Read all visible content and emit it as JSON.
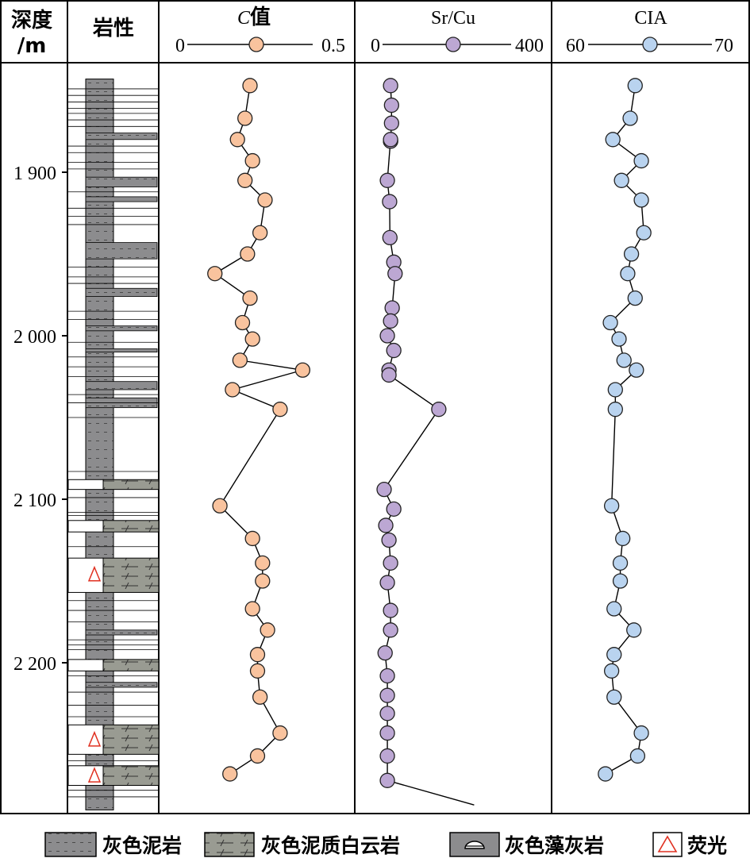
{
  "chart_data": {
    "type": "line",
    "colors": {
      "c_value": "#f9c39e",
      "sr_cu": "#bca7d3",
      "cia": "#b9d3ef",
      "mudstone": "#8c8c8e",
      "dolomite": "#999b92",
      "fluor": "#e03020"
    },
    "headers": {
      "depth": [
        "深度",
        "/m"
      ],
      "lithology": "岩性",
      "c_value": {
        "italic": "C",
        "rest": "值"
      },
      "sr_cu": "Sr/Cu",
      "cia": "CIA"
    },
    "depth_axis": {
      "ylim": [
        1843,
        2290
      ],
      "ticks": [
        1900,
        2000,
        2100,
        2200
      ],
      "tick_labels": [
        "1 900",
        "2 000",
        "2 100",
        "2 200"
      ]
    },
    "tracks": [
      {
        "key": "c_value",
        "min": 0,
        "max": 0.5,
        "min_label": "0",
        "max_label": "0.5",
        "depth": [
          1847,
          1867,
          1880,
          1893,
          1905,
          1917,
          1937,
          1950,
          1962,
          1977,
          1992,
          2002,
          2015,
          2021,
          2033,
          2045,
          2104,
          2124,
          2139,
          2150,
          2167,
          2180,
          2195,
          2205,
          2221,
          2243,
          2257,
          2268
        ],
        "values": [
          0.25,
          0.23,
          0.2,
          0.26,
          0.23,
          0.31,
          0.29,
          0.24,
          0.11,
          0.25,
          0.22,
          0.26,
          0.21,
          0.46,
          0.18,
          0.37,
          0.13,
          0.26,
          0.3,
          0.3,
          0.26,
          0.32,
          0.28,
          0.28,
          0.29,
          0.37,
          0.28,
          0.17
        ]
      },
      {
        "key": "sr_cu",
        "min": 0,
        "max": 400,
        "min_label": "0",
        "max_label": "400",
        "depth": [
          1847,
          1859,
          1870,
          1881,
          1881,
          1880,
          1905,
          1918,
          1940,
          1955,
          1962,
          1983,
          1991,
          2000,
          2009,
          2021,
          2024,
          2045,
          2094,
          2106,
          2116,
          2125,
          2139,
          2151,
          2168,
          2180,
          2194,
          2208,
          2220,
          2231,
          2243,
          2257,
          2272,
          2287
        ],
        "values": [
          25,
          28,
          28,
          25,
          25,
          25,
          15,
          22,
          23,
          35,
          39,
          30,
          25,
          15,
          35,
          20,
          20,
          175,
          5,
          35,
          10,
          20,
          25,
          15,
          25,
          25,
          8,
          15,
          15,
          15,
          15,
          15,
          15,
          285
        ]
      },
      {
        "key": "cia",
        "min": 60,
        "max": 70,
        "min_label": "60",
        "max_label": "70",
        "depth": [
          1847,
          1867,
          1880,
          1893,
          1905,
          1917,
          1937,
          1950,
          1962,
          1977,
          1992,
          2002,
          2015,
          2021,
          2033,
          2045,
          2104,
          2124,
          2139,
          2150,
          2167,
          2180,
          2195,
          2205,
          2221,
          2243,
          2257,
          2268
        ],
        "values": [
          63.8,
          63.4,
          62.0,
          64.3,
          62.7,
          64.3,
          64.5,
          63.5,
          63.2,
          63.8,
          61.8,
          62.5,
          62.9,
          63.9,
          62.2,
          62.2,
          61.9,
          62.8,
          62.6,
          62.6,
          62.1,
          63.7,
          62.1,
          61.9,
          62.1,
          64.3,
          64.0,
          61.4
        ]
      }
    ],
    "lithology_layers": [
      {
        "top": 1843,
        "bottom": 2290,
        "type": "mudstone",
        "fluor": []
      },
      {
        "top": 1876,
        "bottom": 1880,
        "type": "mudstone_band",
        "fluor": []
      },
      {
        "top": 1903,
        "bottom": 1909,
        "type": "mudstone_band",
        "fluor": []
      },
      {
        "top": 1915,
        "bottom": 1918,
        "type": "mudstone_band",
        "fluor": []
      },
      {
        "top": 1943,
        "bottom": 1953,
        "type": "mudstone_band",
        "fluor": []
      },
      {
        "top": 1971,
        "bottom": 1976,
        "type": "mudstone_band",
        "fluor": []
      },
      {
        "top": 1994,
        "bottom": 1997,
        "type": "mudstone_band",
        "fluor": []
      },
      {
        "top": 2008,
        "bottom": 2010,
        "type": "mudstone_band",
        "fluor": []
      },
      {
        "top": 2028,
        "bottom": 2033,
        "type": "mudstone_band",
        "fluor": []
      },
      {
        "top": 2038,
        "bottom": 2044,
        "type": "mudstone_band",
        "fluor": []
      },
      {
        "top": 2088,
        "bottom": 2094,
        "type": "dolomite",
        "fluor": []
      },
      {
        "top": 2113,
        "bottom": 2120,
        "type": "dolomite",
        "fluor": []
      },
      {
        "top": 2136,
        "bottom": 2157,
        "type": "dolomite",
        "fluor": [
          2146
        ]
      },
      {
        "top": 2180,
        "bottom": 2183,
        "type": "mudstone_band",
        "fluor": []
      },
      {
        "top": 2198,
        "bottom": 2205,
        "type": "dolomite",
        "fluor": []
      },
      {
        "top": 2212,
        "bottom": 2215,
        "type": "mudstone_band",
        "fluor": []
      },
      {
        "top": 2238,
        "bottom": 2256,
        "type": "dolomite",
        "fluor": [
          2247
        ]
      },
      {
        "top": 2263,
        "bottom": 2275,
        "type": "dolomite",
        "fluor": [
          2269
        ]
      }
    ]
  },
  "legend": [
    {
      "icon": "mudstone",
      "label": "灰色泥岩"
    },
    {
      "icon": "dolomite",
      "label": "灰色泥质白云岩"
    },
    {
      "icon": "algal",
      "label": "灰色藻灰岩"
    },
    {
      "icon": "fluor",
      "label": "荧光"
    }
  ]
}
